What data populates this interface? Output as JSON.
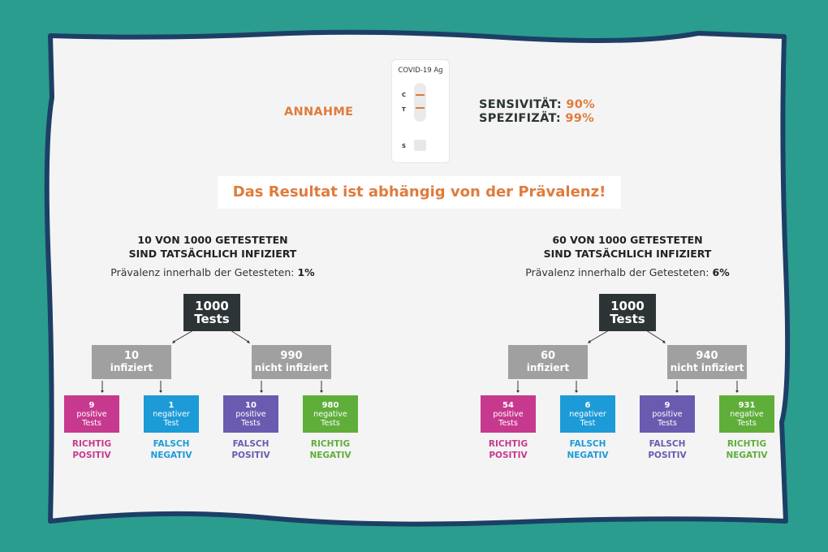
{
  "colors": {
    "background": "#2a9d8f",
    "card": "#f4f4f4",
    "accent": "#e07b3c",
    "root_box": "#2d3436",
    "mid_box": "#a0a0a0",
    "true_positive": "#c7398e",
    "false_negative": "#1d9bd7",
    "false_positive": "#6a5bb0",
    "true_negative": "#5fae3a"
  },
  "header": {
    "assumption_label": "ANNAHME",
    "device_label": "COVID-19 Ag",
    "device_marks": {
      "c": "C",
      "t": "T",
      "s": "S"
    },
    "sensitivity_label": "SENSIVITÄT:",
    "sensitivity_value": "90%",
    "specificity_label": "SPEZIFIZÄT:",
    "specificity_value": "99%",
    "banner": "Das Resultat ist abhängig von der Prävalenz!"
  },
  "panels": [
    {
      "title_line1": "10 VON 1000 GETESTETEN",
      "title_line2": "SIND TATSÄCHLICH INFIZIERT",
      "prevalence_text": "Prävalenz innerhalb der Getesteten:",
      "prevalence_value": "1%",
      "root": {
        "num": "1000",
        "label": "Tests"
      },
      "infected": {
        "num": "10",
        "label": "infiziert"
      },
      "not_infected": {
        "num": "990",
        "label": "nicht infiziert"
      },
      "leaves": [
        {
          "num": "9",
          "label1": "positive",
          "label2": "Tests",
          "cat1": "RICHTIG",
          "cat2": "POSITIV"
        },
        {
          "num": "1",
          "label1": "negativer",
          "label2": "Test",
          "cat1": "FALSCH",
          "cat2": "NEGATIV"
        },
        {
          "num": "10",
          "label1": "positive",
          "label2": "Tests",
          "cat1": "FALSCH",
          "cat2": "POSITIV"
        },
        {
          "num": "980",
          "label1": "negative",
          "label2": "Tests",
          "cat1": "RICHTIG",
          "cat2": "NEGATIV"
        }
      ]
    },
    {
      "title_line1": "60 VON 1000 GETESTETEN",
      "title_line2": "SIND TATSÄCHLICH INFIZIERT",
      "prevalence_text": "Prävalenz innerhalb der Getesteten:",
      "prevalence_value": "6%",
      "root": {
        "num": "1000",
        "label": "Tests"
      },
      "infected": {
        "num": "60",
        "label": "infiziert"
      },
      "not_infected": {
        "num": "940",
        "label": "nicht infiziert"
      },
      "leaves": [
        {
          "num": "54",
          "label1": "positive",
          "label2": "Tests",
          "cat1": "RICHTIG",
          "cat2": "POSITIV"
        },
        {
          "num": "6",
          "label1": "negativer",
          "label2": "Test",
          "cat1": "FALSCH",
          "cat2": "NEGATIV"
        },
        {
          "num": "9",
          "label1": "positive",
          "label2": "Tests",
          "cat1": "FALSCH",
          "cat2": "POSITIV"
        },
        {
          "num": "931",
          "label1": "negative",
          "label2": "Tests",
          "cat1": "RICHTIG",
          "cat2": "NEGATIV"
        }
      ]
    }
  ]
}
